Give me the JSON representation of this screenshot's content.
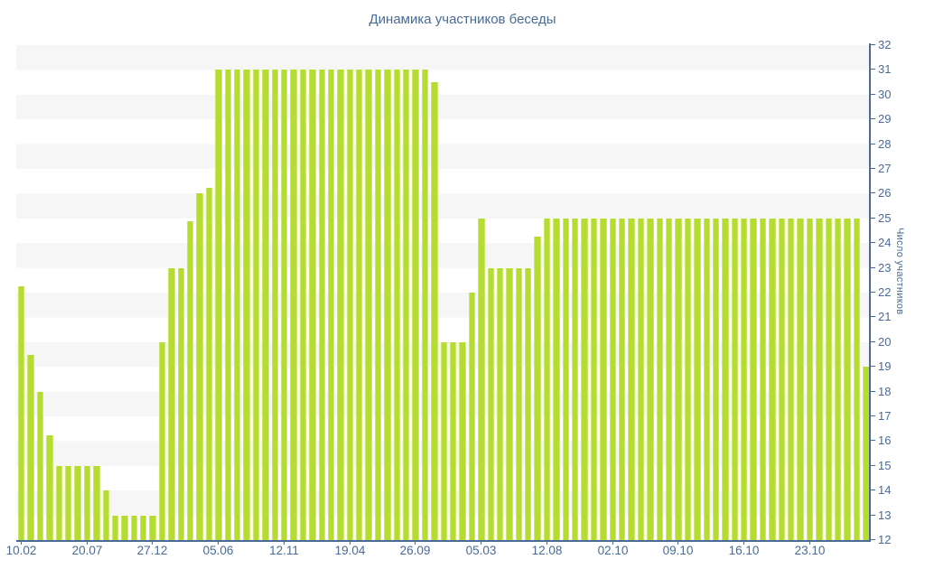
{
  "title": "Динамика участников беседы",
  "colors": {
    "bar": "#b4dc31",
    "bar_edge": "#cde76f",
    "axis_text": "#4a6b96",
    "axis_line": "#4a6b96",
    "stripe": "#f6f6f7",
    "background": "#ffffff"
  },
  "chart_data": {
    "type": "bar",
    "title": "Динамика участников беседы",
    "xlabel": "",
    "ylabel": "Число участников",
    "ylim": [
      12,
      32
    ],
    "grid": "horizontal-stripes",
    "legend": "none",
    "y_ticks": [
      12,
      13,
      14,
      15,
      16,
      17,
      18,
      19,
      20,
      21,
      22,
      23,
      24,
      25,
      26,
      27,
      28,
      29,
      30,
      31,
      32
    ],
    "x_tick_positions": [
      0,
      7,
      14,
      21,
      28,
      35,
      42,
      49,
      56,
      63,
      70,
      77,
      84
    ],
    "x_tick_labels": [
      "10.02",
      "20.07",
      "27.12",
      "05.06",
      "12.11",
      "19.04",
      "26.09",
      "05.03",
      "12.08",
      "02.10",
      "09.10",
      "16.10",
      "23.10"
    ],
    "values": [
      22.25,
      19.5,
      18,
      16.25,
      15,
      15,
      15,
      15,
      15,
      14,
      13,
      13,
      13,
      13,
      13,
      20,
      23,
      23,
      24.9,
      26,
      26.25,
      31,
      31,
      31,
      31,
      31,
      31,
      31,
      31,
      31,
      31,
      31,
      31,
      31,
      31,
      31,
      31,
      31,
      31,
      31,
      31,
      31,
      31,
      31,
      30.5,
      20,
      20,
      20,
      22,
      25,
      23,
      23,
      23,
      23,
      23,
      24.25,
      25,
      25,
      25,
      25,
      25,
      25,
      25,
      25,
      25,
      25,
      25,
      25,
      25,
      25,
      25,
      25,
      25,
      25,
      25,
      25,
      25,
      25,
      25,
      25,
      25,
      25,
      25,
      25,
      25,
      25,
      25,
      25,
      25,
      25,
      19
    ]
  }
}
